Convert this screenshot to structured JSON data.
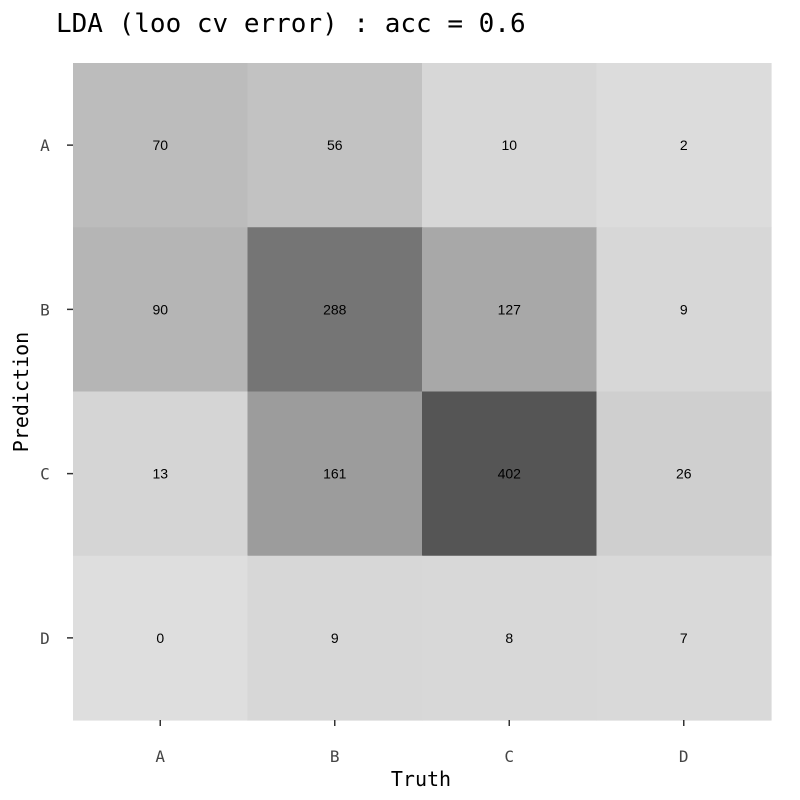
{
  "chart_data": {
    "type": "heatmap",
    "title": "LDA (loo cv error) : acc = 0.6",
    "xlabel": "Truth",
    "ylabel": "Prediction",
    "x_categories": [
      "A",
      "B",
      "C",
      "D"
    ],
    "y_categories": [
      "A",
      "B",
      "C",
      "D"
    ],
    "values": [
      [
        70,
        56,
        10,
        2
      ],
      [
        90,
        288,
        127,
        9
      ],
      [
        13,
        161,
        402,
        26
      ],
      [
        0,
        9,
        8,
        7
      ]
    ],
    "color_scale": {
      "low": "#dedede",
      "high": "#555555"
    },
    "grid": false,
    "legend": "none"
  }
}
